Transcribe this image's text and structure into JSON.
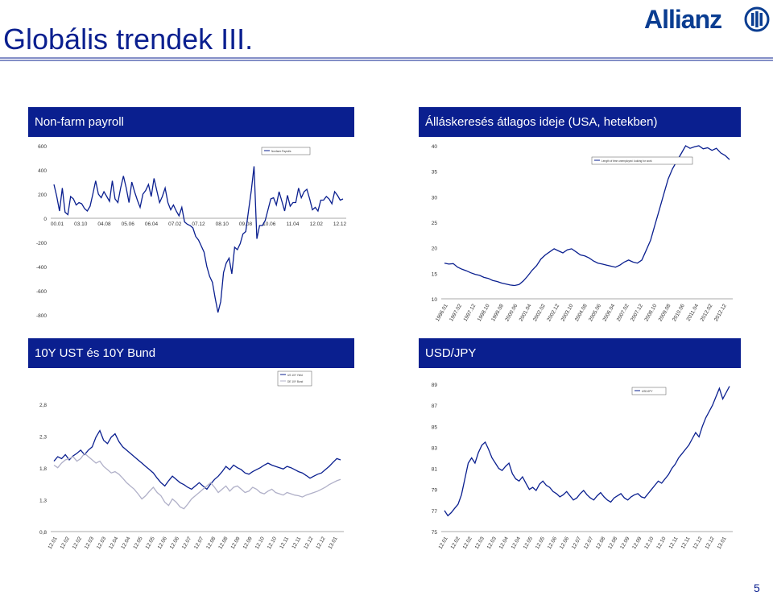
{
  "slide": {
    "title": "Globális trendek III.",
    "page_number": "5",
    "logo_text": "Allianz"
  },
  "colors": {
    "header_bg": "#0a1f8f",
    "series_dark": "#0a1f8f",
    "series_light": "#b0b0c8",
    "brand": "#0a3d91"
  },
  "chart_data": [
    {
      "type": "line",
      "title": "Non-farm payroll",
      "legend": [
        "Nonfarm Payrolls"
      ],
      "legend_position": "top-right",
      "x_tick_labels": [
        "00.01",
        "03.10",
        "04.08",
        "05.06",
        "06.04",
        "07.02",
        "07.12",
        "08.10",
        "09.08",
        "10.06",
        "11.04",
        "12.02",
        "12.12"
      ],
      "y_tick_labels": [
        "600",
        "400",
        "200",
        "0",
        "-200",
        "-400",
        "-600",
        "-800"
      ],
      "ylim": [
        -800,
        600
      ],
      "series": [
        {
          "values": [
            280,
            180,
            60,
            250,
            50,
            30,
            180,
            160,
            110,
            130,
            120,
            80,
            60,
            100,
            200,
            310,
            200,
            170,
            220,
            180,
            140,
            310,
            160,
            130,
            250,
            350,
            250,
            130,
            300,
            220,
            150,
            90,
            200,
            230,
            280,
            180,
            330,
            230,
            130,
            180,
            250,
            130,
            70,
            110,
            60,
            20,
            90,
            -30,
            -50,
            -60,
            -80,
            -150,
            -180,
            -230,
            -280,
            -400,
            -480,
            -530,
            -660,
            -780,
            -690,
            -450,
            -370,
            -330,
            -460,
            -240,
            -260,
            -210,
            -130,
            -110,
            60,
            230,
            430,
            -170,
            -60,
            -60,
            -20,
            70,
            160,
            170,
            110,
            220,
            140,
            60,
            190,
            100,
            130,
            130,
            250,
            170,
            220,
            240,
            160,
            70,
            90,
            60,
            150,
            150,
            180,
            160,
            120,
            220,
            190,
            150,
            160
          ]
        }
      ]
    },
    {
      "type": "line",
      "title": "Álláskeresés átlagos ideje (USA, hetekben)",
      "legend": [
        "Length of time unemployed: looking for work"
      ],
      "legend_position": "top-right",
      "x_tick_labels": [
        "1996.01",
        "1997.02",
        "1997.12",
        "1998.10",
        "1999.08",
        "2000.06",
        "2001.04",
        "2002.02",
        "2002.12",
        "2003.10",
        "2004.08",
        "2005.06",
        "2006.04",
        "2007.02",
        "2007.12",
        "2008.10",
        "2009.08",
        "2010.06",
        "2011.04",
        "2012.02",
        "2012.12"
      ],
      "y_tick_labels": [
        "40",
        "35",
        "30",
        "25",
        "20",
        "15",
        "10"
      ],
      "ylim": [
        10,
        40
      ],
      "series": [
        {
          "values": [
            17.0,
            16.8,
            16.9,
            16.2,
            15.8,
            15.5,
            15.1,
            14.8,
            14.6,
            14.2,
            14.0,
            13.6,
            13.4,
            13.1,
            12.9,
            12.7,
            12.6,
            12.8,
            13.5,
            14.5,
            15.6,
            16.5,
            17.8,
            18.6,
            19.2,
            19.8,
            19.4,
            19.0,
            19.6,
            19.8,
            19.2,
            18.6,
            18.4,
            18.0,
            17.4,
            17.0,
            16.8,
            16.6,
            16.4,
            16.2,
            16.6,
            17.2,
            17.6,
            17.2,
            17.0,
            17.6,
            19.5,
            21.5,
            24.5,
            27.5,
            30.5,
            33.5,
            35.5,
            37.0,
            38.5,
            40.0,
            39.5,
            39.8,
            40.0,
            39.4,
            39.6,
            39.1,
            39.5,
            38.6,
            38.1,
            37.3
          ]
        }
      ]
    },
    {
      "type": "line",
      "title": "10Y UST és 10Y Bund",
      "legend": [
        "US 10Y Yield",
        "DE 10Y Bund"
      ],
      "legend_position": "top-right",
      "x_tick_labels": [
        "12.01",
        "12.02",
        "12.02",
        "12.03",
        "12.03",
        "12.04",
        "12.04",
        "12.05",
        "12.05",
        "12.06",
        "12.06",
        "12.07",
        "12.07",
        "12.08",
        "12.08",
        "12.09",
        "12.09",
        "12.10",
        "12.10",
        "12.11",
        "12.11",
        "12.12",
        "12.12",
        "13.01"
      ],
      "y_tick_labels": [
        "2,8",
        "2,3",
        "1,8",
        "1,3",
        "0,8"
      ],
      "ylim": [
        0.8,
        3.0
      ],
      "series": [
        {
          "values": [
            1.88,
            1.95,
            1.92,
            1.98,
            1.9,
            1.96,
            2.0,
            2.05,
            1.98,
            2.05,
            2.1,
            2.25,
            2.35,
            2.2,
            2.15,
            2.25,
            2.3,
            2.18,
            2.1,
            2.05,
            2.0,
            1.95,
            1.9,
            1.85,
            1.8,
            1.75,
            1.7,
            1.62,
            1.55,
            1.5,
            1.58,
            1.65,
            1.6,
            1.55,
            1.52,
            1.48,
            1.45,
            1.5,
            1.55,
            1.5,
            1.45,
            1.53,
            1.6,
            1.65,
            1.72,
            1.8,
            1.75,
            1.82,
            1.78,
            1.75,
            1.7,
            1.68,
            1.72,
            1.75,
            1.78,
            1.82,
            1.85,
            1.82,
            1.8,
            1.78,
            1.76,
            1.8,
            1.78,
            1.75,
            1.72,
            1.7,
            1.66,
            1.62,
            1.65,
            1.68,
            1.7,
            1.75,
            1.8,
            1.86,
            1.92,
            1.9
          ]
        },
        {
          "values": [
            1.82,
            1.78,
            1.85,
            1.9,
            1.92,
            1.95,
            1.88,
            1.92,
            2.0,
            1.95,
            1.9,
            1.85,
            1.88,
            1.8,
            1.75,
            1.7,
            1.72,
            1.68,
            1.62,
            1.55,
            1.5,
            1.45,
            1.38,
            1.3,
            1.35,
            1.42,
            1.48,
            1.4,
            1.35,
            1.25,
            1.2,
            1.3,
            1.25,
            1.18,
            1.15,
            1.22,
            1.3,
            1.35,
            1.4,
            1.45,
            1.5,
            1.55,
            1.48,
            1.4,
            1.45,
            1.5,
            1.42,
            1.48,
            1.5,
            1.45,
            1.4,
            1.42,
            1.48,
            1.45,
            1.4,
            1.38,
            1.42,
            1.45,
            1.4,
            1.38,
            1.36,
            1.4,
            1.38,
            1.36,
            1.35,
            1.33,
            1.36,
            1.38,
            1.4,
            1.42,
            1.45,
            1.48,
            1.52,
            1.55,
            1.58,
            1.6
          ]
        }
      ]
    },
    {
      "type": "line",
      "title": "USD/JPY",
      "legend": [
        "USD/JPY"
      ],
      "legend_position": "top-right",
      "x_tick_labels": [
        "12.01",
        "12.02",
        "12.02",
        "12.03",
        "12.03",
        "12.04",
        "12.04",
        "12.05",
        "12.05",
        "12.06",
        "12.06",
        "12.07",
        "12.07",
        "12.08",
        "12.08",
        "12.09",
        "12.09",
        "12.10",
        "12.10",
        "12.11",
        "12.11",
        "12.12",
        "12.12",
        "13.01"
      ],
      "y_tick_labels": [
        "89",
        "87",
        "85",
        "83",
        "81",
        "79",
        "77",
        "75"
      ],
      "ylim": [
        75,
        89
      ],
      "series": [
        {
          "values": [
            77.0,
            76.5,
            76.8,
            77.2,
            77.6,
            78.5,
            80.0,
            81.5,
            82.0,
            81.5,
            82.5,
            83.2,
            83.5,
            82.8,
            82.0,
            81.5,
            81.0,
            80.8,
            81.2,
            81.5,
            80.5,
            80.0,
            79.8,
            80.2,
            79.6,
            79.0,
            79.2,
            78.9,
            79.5,
            79.8,
            79.4,
            79.2,
            78.8,
            78.6,
            78.3,
            78.5,
            78.8,
            78.4,
            78.0,
            78.2,
            78.6,
            78.9,
            78.5,
            78.2,
            78.0,
            78.4,
            78.7,
            78.3,
            78.0,
            77.8,
            78.2,
            78.4,
            78.6,
            78.2,
            78.0,
            78.3,
            78.5,
            78.6,
            78.3,
            78.2,
            78.6,
            79.0,
            79.4,
            79.8,
            79.6,
            80.0,
            80.4,
            81.0,
            81.4,
            82.0,
            82.4,
            82.8,
            83.2,
            83.8,
            84.4,
            84.0,
            85.0,
            85.8,
            86.4,
            87.0,
            87.8,
            88.6,
            87.6,
            88.2,
            88.8
          ]
        }
      ]
    }
  ]
}
